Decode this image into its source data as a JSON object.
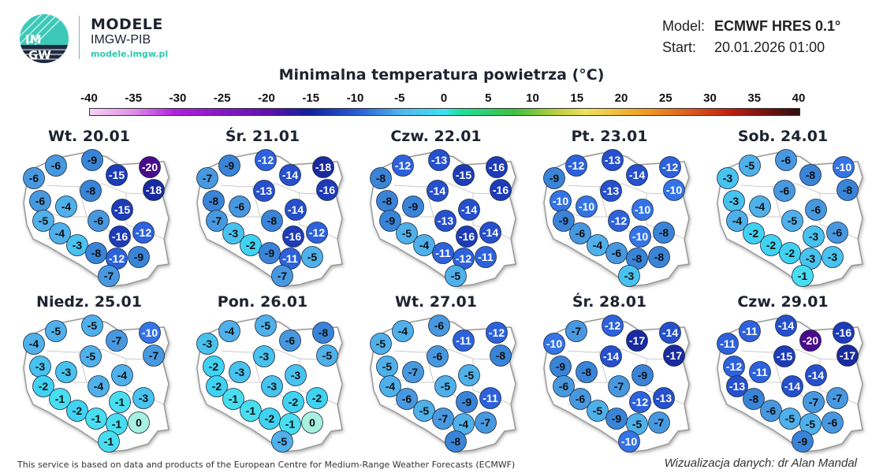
{
  "header": {
    "logo_text": "IMGW",
    "brand_title": "MODELE",
    "brand_subtitle": "IMGW-PIB",
    "brand_url": "modele.imgw.pl",
    "model_label": "Model:",
    "model_value": "ECMWF HRES 0.1°",
    "start_label": "Start:",
    "start_value": "20.01.2026 01:00"
  },
  "title": "Minimalna temperatura powietrza (°C)",
  "colorbar": {
    "ticks": [
      "-40",
      "-35",
      "-30",
      "-25",
      "-20",
      "-15",
      "-10",
      "-5",
      "0",
      "5",
      "10",
      "15",
      "20",
      "25",
      "30",
      "35",
      "40"
    ]
  },
  "days": [
    {
      "label": "Wt. 20.01",
      "values": [
        -6,
        -6,
        -9,
        -15,
        -20,
        -18,
        -8,
        -6,
        -4,
        -15,
        -5,
        -6,
        -4,
        -16,
        -12,
        -3,
        -8,
        -12,
        -9,
        -7
      ]
    },
    {
      "label": "Śr. 21.01",
      "values": [
        -7,
        -9,
        -12,
        -14,
        -18,
        -16,
        -13,
        -8,
        -6,
        -14,
        -7,
        -8,
        -3,
        -16,
        -12,
        -2,
        -9,
        -11,
        -5,
        -7
      ]
    },
    {
      "label": "Czw. 22.01",
      "values": [
        -8,
        -12,
        -13,
        -15,
        -16,
        -16,
        -14,
        -8,
        -9,
        -14,
        -9,
        -13,
        -5,
        -16,
        -14,
        -4,
        -11,
        -12,
        -11,
        -5
      ]
    },
    {
      "label": "Pt. 23.01",
      "values": [
        -9,
        -12,
        -13,
        -14,
        -12,
        -10,
        -13,
        -10,
        -10,
        -10,
        -9,
        -12,
        -6,
        -10,
        -8,
        -4,
        -6,
        -8,
        -8,
        -3
      ]
    },
    {
      "label": "Sob. 24.01",
      "values": [
        -3,
        -5,
        -6,
        -8,
        -10,
        -8,
        -6,
        -3,
        -4,
        -6,
        -4,
        -5,
        -2,
        -3,
        -6,
        -2,
        -2,
        -3,
        -3,
        -1
      ]
    },
    {
      "label": "Niedz. 25.01",
      "values": [
        -4,
        -5,
        -5,
        -7,
        -10,
        -7,
        -5,
        -3,
        -3,
        -4,
        -2,
        -4,
        -1,
        -1,
        -3,
        -2,
        -1,
        -1,
        0,
        -1
      ]
    },
    {
      "label": "Pon. 26.01",
      "values": [
        -3,
        -4,
        -5,
        -6,
        -8,
        -5,
        -3,
        -2,
        -3,
        -3,
        -2,
        -3,
        -1,
        -2,
        -2,
        -1,
        -2,
        -1,
        0,
        -5
      ]
    },
    {
      "label": "Wt. 27.01",
      "values": [
        -5,
        -4,
        -6,
        -11,
        -12,
        -8,
        -6,
        -5,
        -7,
        -5,
        -4,
        -5,
        -6,
        -9,
        -11,
        -5,
        -7,
        -4,
        -7,
        -8
      ]
    },
    {
      "label": "Śr. 28.01",
      "values": [
        -10,
        -7,
        -12,
        -17,
        -14,
        -17,
        -14,
        -9,
        -8,
        -9,
        -6,
        -7,
        -6,
        -12,
        -13,
        -5,
        -9,
        -5,
        -7,
        -10
      ]
    },
    {
      "label": "Czw. 29.01",
      "values": [
        -11,
        -11,
        -14,
        -20,
        -16,
        -17,
        -15,
        -12,
        -11,
        -14,
        -13,
        -14,
        -8,
        -7,
        -7,
        -6,
        -5,
        -5,
        -6,
        -9
      ]
    }
  ],
  "footer": {
    "attribution": "This service is based on data and products of the European Centre for Medium-Range Weather Forecasts (ECMWF)",
    "credit": "Wizualizacja danych: dr Alan Mandal"
  }
}
